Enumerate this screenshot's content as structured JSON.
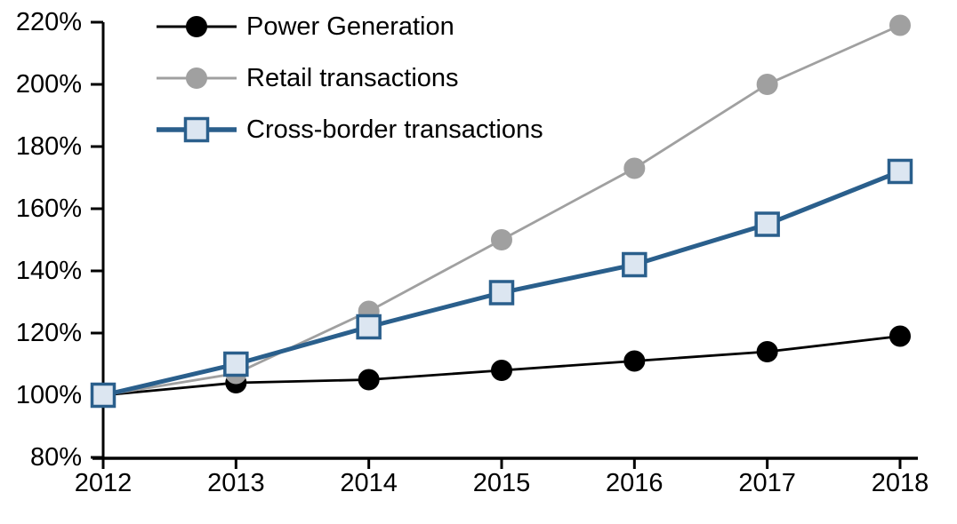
{
  "chart_data": {
    "type": "line",
    "title": "",
    "xlabel": "",
    "ylabel": "",
    "grid": false,
    "x": [
      2012,
      2013,
      2014,
      2015,
      2016,
      2017,
      2018
    ],
    "x_labels": [
      "2012",
      "2013",
      "2014",
      "2015",
      "2016",
      "2017",
      "2018"
    ],
    "ylim": [
      80,
      220
    ],
    "y_tick_step": 20,
    "y_ticks": [
      {
        "value": 220,
        "label": "220%"
      },
      {
        "value": 200,
        "label": "200%"
      },
      {
        "value": 180,
        "label": "180%"
      },
      {
        "value": 160,
        "label": "160%"
      },
      {
        "value": 140,
        "label": "140%"
      },
      {
        "value": 120,
        "label": "120%"
      },
      {
        "value": 100,
        "label": "100%"
      },
      {
        "value": 80,
        "label": "80%"
      }
    ],
    "series": [
      {
        "name": "Power Generation",
        "marker": "circle",
        "line_color": "#000000",
        "marker_fill": "#000000",
        "marker_stroke": "#000000",
        "values": [
          100,
          104,
          105,
          108,
          111,
          114,
          119
        ]
      },
      {
        "name": "Retail transactions",
        "marker": "circle",
        "line_color": "#a0a0a0",
        "marker_fill": "#a0a0a0",
        "marker_stroke": "#a0a0a0",
        "values": [
          100,
          107,
          127,
          150,
          173,
          200,
          219
        ]
      },
      {
        "name": "Cross-border transactions",
        "marker": "square",
        "line_color": "#2a5f8c",
        "marker_fill": "#dce6f1",
        "marker_stroke": "#2a5f8c",
        "values": [
          100,
          110,
          122,
          133,
          142,
          155,
          172
        ]
      }
    ],
    "legend": {
      "position": "top-left-inside",
      "items": [
        "Power Generation",
        "Retail transactions",
        "Cross-border transactions"
      ]
    }
  },
  "colors": {
    "background": "#ffffff",
    "axis": "#000000",
    "accent_blue": "#2a5f8c",
    "accent_gray": "#a0a0a0",
    "square_fill": "#dce6f1"
  }
}
